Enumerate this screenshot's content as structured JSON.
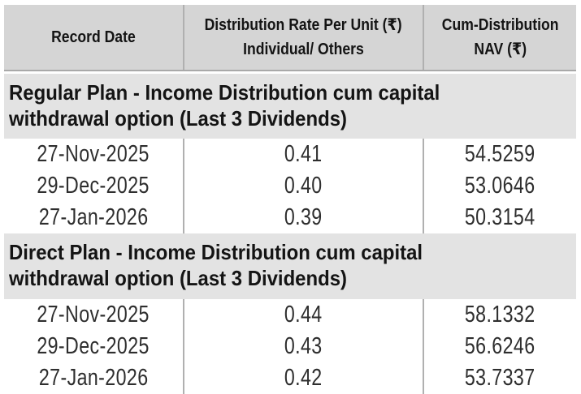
{
  "table": {
    "currency_symbol": "₹",
    "header": {
      "col1": "Record Date",
      "col2_line1": "Distribution Rate Per Unit (₹)",
      "col2_line2": "Individual/ Others",
      "col3_line1": "Cum-Distribution",
      "col3_line2": "NAV (₹)"
    },
    "sections": [
      {
        "title": "Regular Plan - Income Distribution cum capital withdrawal option (Last 3 Dividends)",
        "title_line1": "Regular Plan - Income Distribution cum capital",
        "title_line2": "withdrawal option (Last 3 Dividends)",
        "rows": [
          {
            "record_date": "27-Nov-2025",
            "rate": "0.41",
            "nav": "54.5259"
          },
          {
            "record_date": "29-Dec-2025",
            "rate": "0.40",
            "nav": "53.0646"
          },
          {
            "record_date": "27-Jan-2026",
            "rate": "0.39",
            "nav": "50.3154"
          }
        ]
      },
      {
        "title": "Direct Plan - Income Distribution cum capital withdrawal option (Last 3 Dividends)",
        "title_line1": "Direct Plan - Income Distribution cum capital",
        "title_line2": "withdrawal option (Last 3 Dividends)",
        "rows": [
          {
            "record_date": "27-Nov-2025",
            "rate": "0.44",
            "nav": "58.1332"
          },
          {
            "record_date": "29-Dec-2025",
            "rate": "0.43",
            "nav": "56.6246"
          },
          {
            "record_date": "27-Jan-2026",
            "rate": "0.42",
            "nav": "53.7337"
          }
        ]
      }
    ]
  },
  "colors": {
    "header_bg": "#d5d5d5",
    "section_bg": "#e3e3e3",
    "divider": "#aeaeae",
    "heading_text": "#141414",
    "data_text": "#2e2e2e",
    "page_bg": "#ffffff"
  }
}
